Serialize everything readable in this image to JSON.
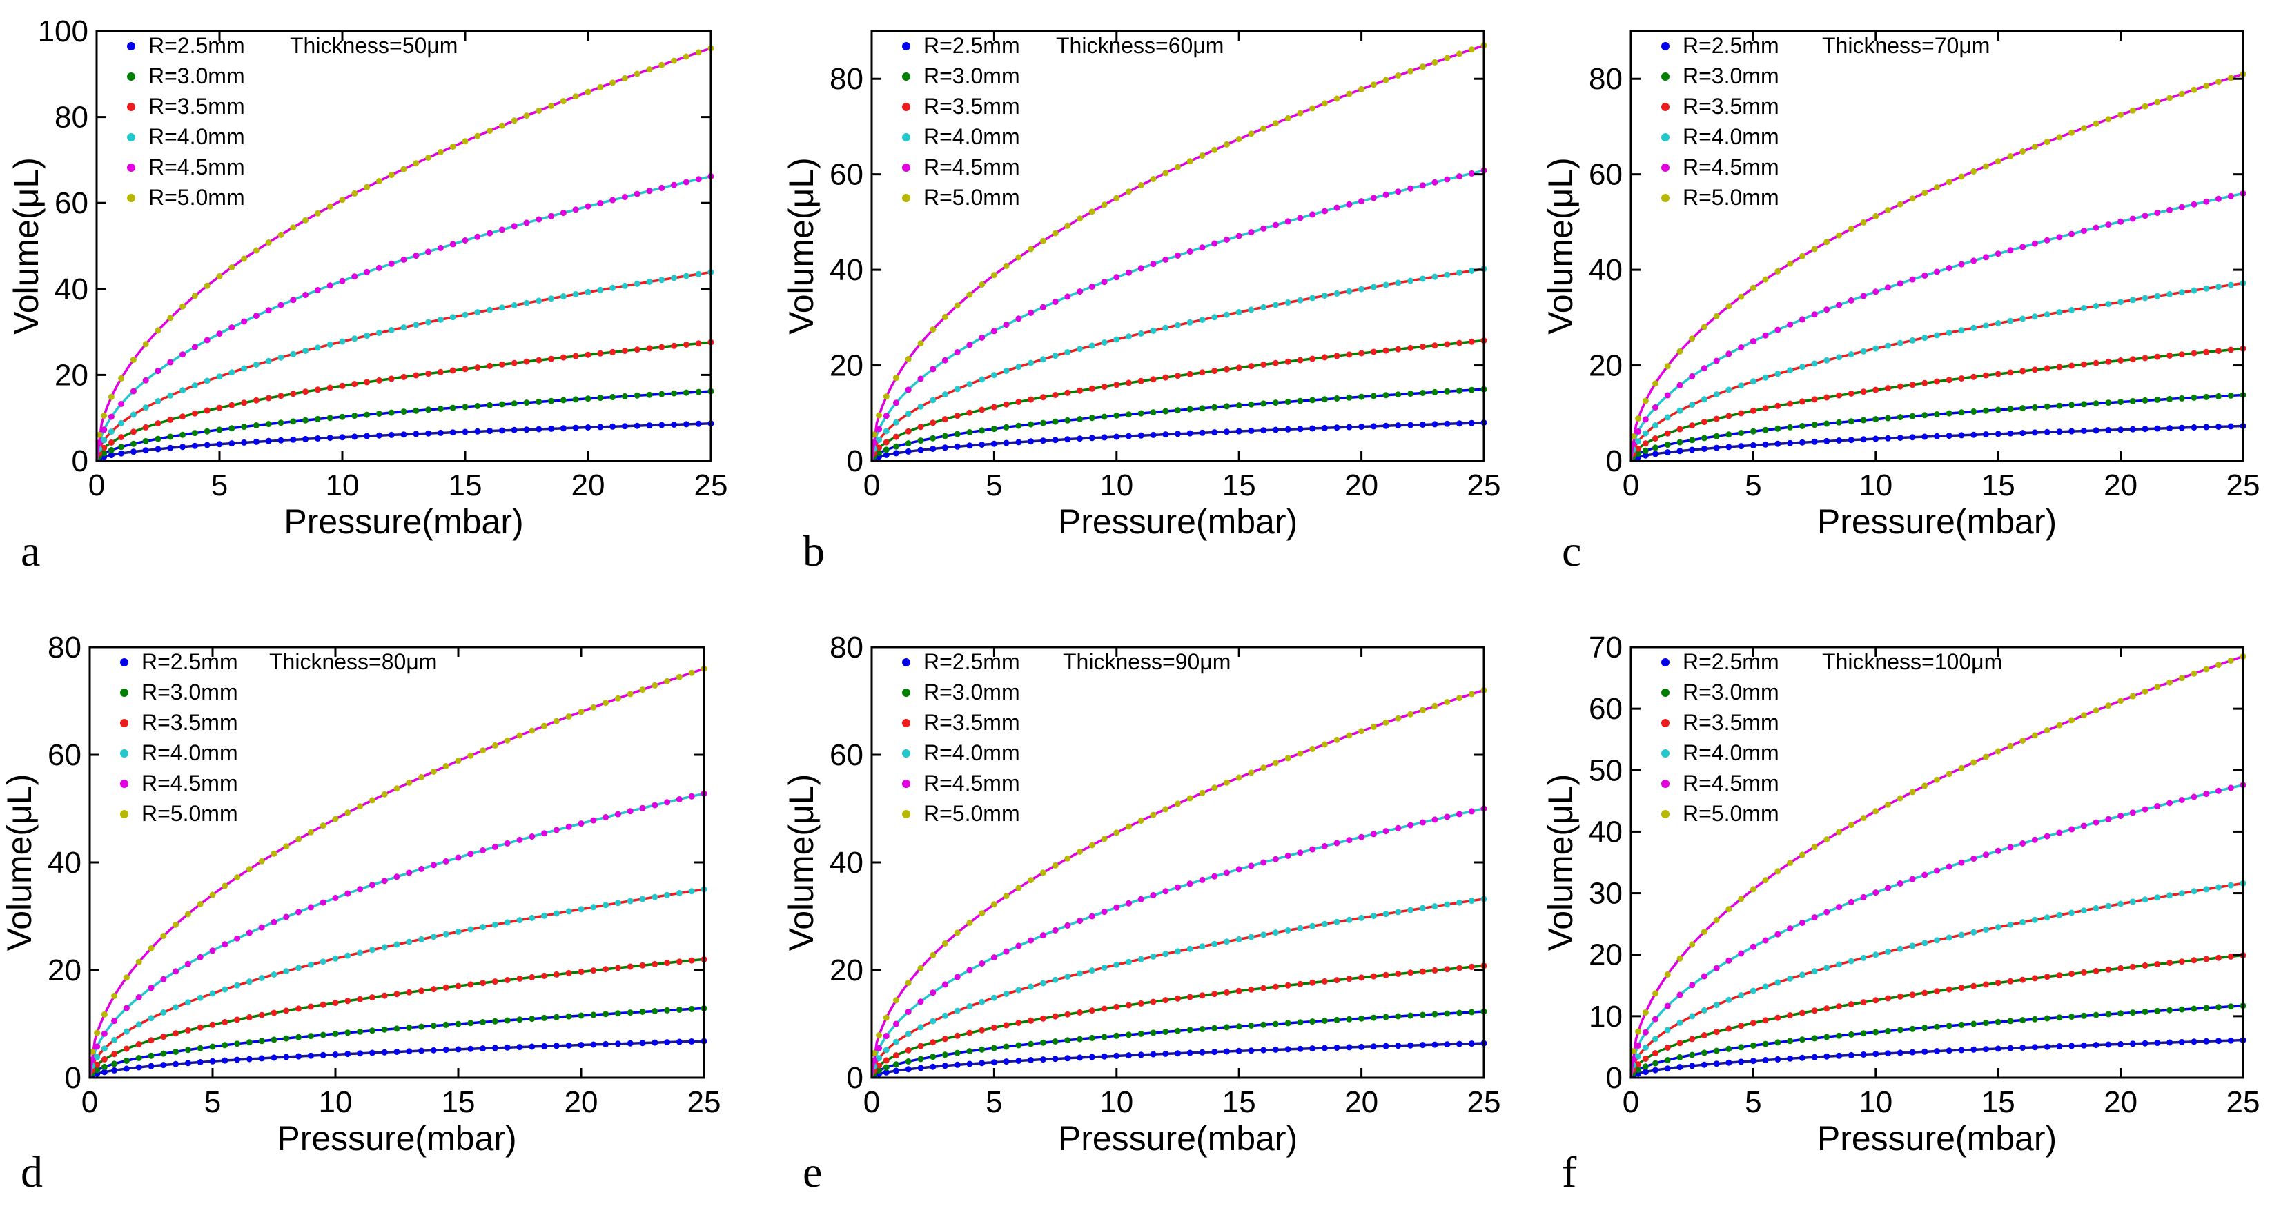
{
  "colors": {
    "R=2.5mm": "#0000ee",
    "R=3.0mm": "#008000",
    "R=3.5mm": "#ee1c1c",
    "R=4.0mm": "#22c8cc",
    "R=4.5mm": "#e000e0",
    "R=5.0mm": "#b8b800",
    "fit_line_colors": [
      "#1a1a8c",
      "#0000ee",
      "#008000",
      "#ee1c1c",
      "#22c8cc",
      "#e000e0"
    ]
  },
  "chart_data": [
    {
      "type": "scatter",
      "panel_label": "a",
      "note": "Thickness=50μm",
      "xlabel": "Pressure(mbar)",
      "ylabel": "Volume(μL)",
      "xlim": [
        0,
        25
      ],
      "ylim": [
        0,
        100
      ],
      "xticks": [
        0,
        5,
        10,
        15,
        20,
        25
      ],
      "yticks": [
        0,
        20,
        40,
        60,
        80,
        100
      ],
      "legend": "top-left",
      "series": [
        {
          "name": "R=2.5mm",
          "end_value": 8.7
        },
        {
          "name": "R=3.0mm",
          "end_value": 16.2
        },
        {
          "name": "R=3.5mm",
          "end_value": 27.6
        },
        {
          "name": "R=4.0mm",
          "end_value": 43.9
        },
        {
          "name": "R=4.5mm",
          "end_value": 66.2
        },
        {
          "name": "R=5.0mm",
          "end_value": 96.0
        }
      ]
    },
    {
      "type": "scatter",
      "panel_label": "b",
      "note": "Thickness=60μm",
      "xlabel": "Pressure(mbar)",
      "ylabel": "Volume(μL)",
      "xlim": [
        0,
        25
      ],
      "ylim": [
        0,
        90
      ],
      "xticks": [
        0,
        5,
        10,
        15,
        20,
        25
      ],
      "yticks": [
        0,
        20,
        40,
        60,
        80
      ],
      "legend": "top-left",
      "series": [
        {
          "name": "R=2.5mm",
          "end_value": 8.0
        },
        {
          "name": "R=3.0mm",
          "end_value": 15.0
        },
        {
          "name": "R=3.5mm",
          "end_value": 25.2
        },
        {
          "name": "R=4.0mm",
          "end_value": 40.2
        },
        {
          "name": "R=4.5mm",
          "end_value": 60.8
        },
        {
          "name": "R=5.0mm",
          "end_value": 87.0
        }
      ]
    },
    {
      "type": "scatter",
      "panel_label": "c",
      "note": "Thickness=70μm",
      "xlabel": "Pressure(mbar)",
      "ylabel": "Volume(μL)",
      "xlim": [
        0,
        25
      ],
      "ylim": [
        0,
        90
      ],
      "xticks": [
        0,
        5,
        10,
        15,
        20,
        25
      ],
      "yticks": [
        0,
        20,
        40,
        60,
        80
      ],
      "legend": "top-left",
      "series": [
        {
          "name": "R=2.5mm",
          "end_value": 7.3
        },
        {
          "name": "R=3.0mm",
          "end_value": 13.8
        },
        {
          "name": "R=3.5mm",
          "end_value": 23.5
        },
        {
          "name": "R=4.0mm",
          "end_value": 37.2
        },
        {
          "name": "R=4.5mm",
          "end_value": 56.0
        },
        {
          "name": "R=5.0mm",
          "end_value": 81.0
        }
      ]
    },
    {
      "type": "scatter",
      "panel_label": "d",
      "note": "Thickness=80μm",
      "xlabel": "Pressure(mbar)",
      "ylabel": "Volume(μL)",
      "xlim": [
        0,
        25
      ],
      "ylim": [
        0,
        80
      ],
      "xticks": [
        0,
        5,
        10,
        15,
        20,
        25
      ],
      "yticks": [
        0,
        20,
        40,
        60,
        80
      ],
      "legend": "top-left",
      "series": [
        {
          "name": "R=2.5mm",
          "end_value": 6.8
        },
        {
          "name": "R=3.0mm",
          "end_value": 12.9
        },
        {
          "name": "R=3.5mm",
          "end_value": 22.0
        },
        {
          "name": "R=4.0mm",
          "end_value": 35.0
        },
        {
          "name": "R=4.5mm",
          "end_value": 52.8
        },
        {
          "name": "R=5.0mm",
          "end_value": 76.0
        }
      ]
    },
    {
      "type": "scatter",
      "panel_label": "e",
      "note": "Thickness=90μm",
      "xlabel": "Pressure(mbar)",
      "ylabel": "Volume(μL)",
      "xlim": [
        0,
        25
      ],
      "ylim": [
        0,
        80
      ],
      "xticks": [
        0,
        5,
        10,
        15,
        20,
        25
      ],
      "yticks": [
        0,
        20,
        40,
        60,
        80
      ],
      "legend": "top-left",
      "series": [
        {
          "name": "R=2.5mm",
          "end_value": 6.4
        },
        {
          "name": "R=3.0mm",
          "end_value": 12.3
        },
        {
          "name": "R=3.5mm",
          "end_value": 20.8
        },
        {
          "name": "R=4.0mm",
          "end_value": 33.2
        },
        {
          "name": "R=4.5mm",
          "end_value": 50.0
        },
        {
          "name": "R=5.0mm",
          "end_value": 72.0
        }
      ]
    },
    {
      "type": "scatter",
      "panel_label": "f",
      "note": "Thickness=100μm",
      "xlabel": "Pressure(mbar)",
      "ylabel": "Volume(μL)",
      "xlim": [
        0,
        25
      ],
      "ylim": [
        0,
        70
      ],
      "xticks": [
        0,
        5,
        10,
        15,
        20,
        25
      ],
      "yticks": [
        0,
        10,
        20,
        30,
        40,
        50,
        60,
        70
      ],
      "legend": "top-left",
      "series": [
        {
          "name": "R=2.5mm",
          "end_value": 6.1
        },
        {
          "name": "R=3.0mm",
          "end_value": 11.7
        },
        {
          "name": "R=3.5mm",
          "end_value": 19.9
        },
        {
          "name": "R=4.0mm",
          "end_value": 31.6
        },
        {
          "name": "R=4.5mm",
          "end_value": 47.6
        },
        {
          "name": "R=5.0mm",
          "end_value": 68.5
        }
      ]
    }
  ]
}
